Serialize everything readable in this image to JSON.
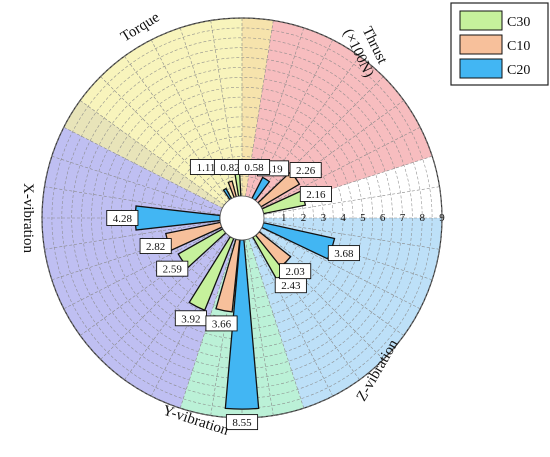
{
  "chart_data": {
    "type": "polar-bar",
    "title": "",
    "radial_ticks": [
      "1",
      "2",
      "3",
      "4",
      "5",
      "6",
      "7",
      "8",
      "9"
    ],
    "rmax": 9,
    "categories": [
      {
        "name": "Thrust",
        "unit": "(×100N)",
        "color": "#f4a7aa"
      },
      {
        "name": "Z-vibration",
        "unit": "",
        "color": "#a7d6f5"
      },
      {
        "name": "Y-vibration",
        "unit": "",
        "color": "#a4ecc9"
      },
      {
        "name": "X-vibration",
        "unit": "",
        "color": "#a9a9ee"
      },
      {
        "name": "Torque",
        "unit": "",
        "color": "#f5f0a6"
      }
    ],
    "series": [
      {
        "name": "C30",
        "color": "#c6f19c",
        "values": [
          2.16,
          2.43,
          3.92,
          2.59,
          1.11
        ]
      },
      {
        "name": "C10",
        "color": "#f7c09b",
        "values": [
          2.26,
          2.03,
          3.66,
          2.82,
          0.82
        ]
      },
      {
        "name": "C20",
        "color": "#42b6f3",
        "values": [
          1.19,
          3.68,
          8.55,
          4.28,
          0.58
        ]
      }
    ],
    "labels": [
      [
        "2.16",
        "2.43",
        "3.92",
        "2.59",
        "1.11"
      ],
      [
        "2.26",
        "2.03",
        "3.66",
        "2.82",
        "0.82"
      ],
      [
        "1.19",
        "3.68",
        "8.55",
        "4.28",
        "0.58"
      ]
    ],
    "legend": {
      "position": "top-right"
    }
  }
}
